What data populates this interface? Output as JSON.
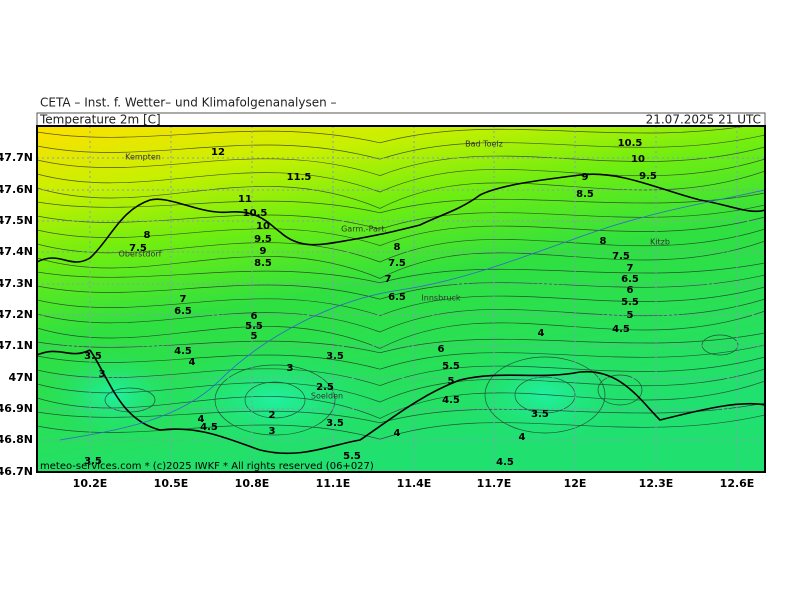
{
  "header": {
    "institute": "CETA – Inst. f. Wetter– und Klimafolgenanalysen –",
    "field": "Temperature 2m [C]",
    "time": "21.07.2025 21 UTC"
  },
  "map": {
    "lat_labels": [
      "47.7N",
      "47.6N",
      "47.5N",
      "47.4N",
      "47.3N",
      "47.2N",
      "47.1N",
      "47N",
      "46.9N",
      "46.8N",
      "46.7N"
    ],
    "lon_labels": [
      "10.2E",
      "10.5E",
      "10.8E",
      "11.1E",
      "11.4E",
      "11.7E",
      "12E",
      "12.3E",
      "12.6E"
    ],
    "places": [
      "Kempten",
      "Bad Toelz",
      "Garm.-Part.",
      "Oberstdorf",
      "Innsbruck",
      "Kitzb",
      "Soelden"
    ],
    "contour_labels": [
      12,
      11.5,
      11,
      10.5,
      10,
      9.5,
      9,
      8.5,
      8,
      7.5,
      8,
      7.5,
      7,
      6.5,
      7,
      6.5,
      6,
      5.5,
      5,
      4.5,
      4,
      3.5,
      3,
      3.5,
      3,
      2.5,
      2,
      3,
      3.5,
      4,
      4.5,
      4,
      6,
      5.5,
      5,
      4.5,
      4,
      3.5,
      4,
      4.5,
      5.5,
      3.5,
      10.5,
      10,
      9.5,
      9,
      8.5,
      8,
      7.5,
      7,
      6.5,
      6,
      5.5,
      5,
      4.5
    ]
  },
  "footer": "meteo-services.com * (c)2025 IWKF * All rights reserved (06+027)"
}
